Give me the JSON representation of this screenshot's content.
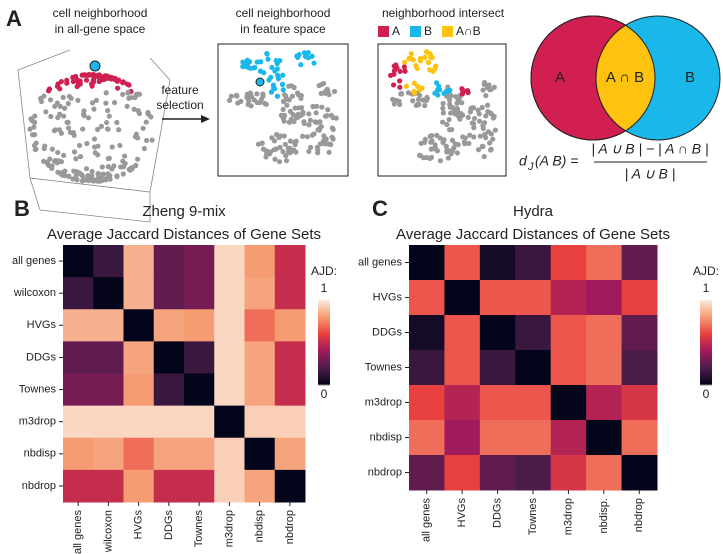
{
  "panel_a": {
    "label": "A",
    "left_title": [
      "cell neighborhood",
      "in all-gene space"
    ],
    "arrow_label": [
      "feature",
      "selection"
    ],
    "middle_title": [
      "cell neighborhood",
      "in feature space"
    ],
    "right_title": "neighborhood intersect",
    "legend": [
      {
        "name": "A",
        "color": "#d11f52"
      },
      {
        "name": "B",
        "color": "#1ab8ea"
      },
      {
        "name": "A∩B",
        "color": "#ffc20e"
      }
    ],
    "venn": [
      "A",
      "A ∩ B",
      "B"
    ],
    "formula": {
      "lhs": "d",
      "sub": "J",
      "args": "(A B) =",
      "numerator": "| A ∪ B | − | A ∩ B |",
      "denominator": "| A ∪ B |"
    }
  },
  "chart_data": [
    {
      "type": "heatmap",
      "panel": "B",
      "title": "Zheng 9-mix",
      "subtitle": "Average Jaccard Distances of Gene Sets",
      "rows": [
        "all genes",
        "wilcoxon",
        "HVGs",
        "DDGs",
        "Townes",
        "m3drop",
        "nbdisp",
        "nbdrop"
      ],
      "columns": [
        "all genes",
        "wilcoxon",
        "HVGs",
        "DDGs",
        "Townes",
        "m3drop",
        "nbdisp",
        "nbdrop"
      ],
      "values": [
        [
          0,
          0.15,
          0.85,
          0.25,
          0.3,
          0.95,
          0.8,
          0.5
        ],
        [
          0.15,
          0,
          0.85,
          0.25,
          0.3,
          0.95,
          0.82,
          0.5
        ],
        [
          0.85,
          0.85,
          0,
          0.82,
          0.8,
          0.95,
          0.7,
          0.8
        ],
        [
          0.25,
          0.25,
          0.82,
          0,
          0.15,
          0.95,
          0.82,
          0.5
        ],
        [
          0.3,
          0.3,
          0.8,
          0.15,
          0,
          0.95,
          0.82,
          0.5
        ],
        [
          0.95,
          0.95,
          0.95,
          0.95,
          0.95,
          0,
          0.93,
          0.93
        ],
        [
          0.8,
          0.82,
          0.7,
          0.82,
          0.82,
          0.93,
          0,
          0.82
        ],
        [
          0.5,
          0.5,
          0.8,
          0.5,
          0.5,
          0.93,
          0.82,
          0
        ]
      ],
      "colorbar_label": "AJD:",
      "zlim": [
        0,
        1
      ],
      "zticks": [
        0,
        1
      ],
      "colormap": [
        "#03051a",
        "#4c1d4b",
        "#a11a5b",
        "#e83f3f",
        "#f69c73",
        "#faebdd"
      ]
    },
    {
      "type": "heatmap",
      "panel": "C",
      "title": "Hydra",
      "subtitle": "Average Jaccard Distances of Gene Sets",
      "rows": [
        "all genes",
        "HVGs",
        "DDGs",
        "Townes",
        "m3drop",
        "nbdisp",
        "nbdrop"
      ],
      "columns": [
        "all genes",
        "HVGs",
        "DDGs",
        "Townes",
        "m3drop",
        "nbdisp.",
        "nbdrop"
      ],
      "values": [
        [
          0,
          0.65,
          0.05,
          0.15,
          0.6,
          0.7,
          0.25
        ],
        [
          0.65,
          0,
          0.65,
          0.65,
          0.45,
          0.4,
          0.6
        ],
        [
          0.05,
          0.65,
          0,
          0.15,
          0.65,
          0.7,
          0.25
        ],
        [
          0.15,
          0.65,
          0.15,
          0,
          0.65,
          0.7,
          0.2
        ],
        [
          0.6,
          0.45,
          0.65,
          0.65,
          0,
          0.45,
          0.55
        ],
        [
          0.7,
          0.4,
          0.7,
          0.7,
          0.45,
          0,
          0.7
        ],
        [
          0.25,
          0.6,
          0.25,
          0.2,
          0.55,
          0.7,
          0
        ]
      ],
      "colorbar_label": "AJD:",
      "zlim": [
        0,
        1
      ],
      "zticks": [
        0,
        1
      ],
      "colormap": [
        "#03051a",
        "#4c1d4b",
        "#a11a5b",
        "#e83f3f",
        "#f69c73",
        "#faebdd"
      ]
    }
  ]
}
